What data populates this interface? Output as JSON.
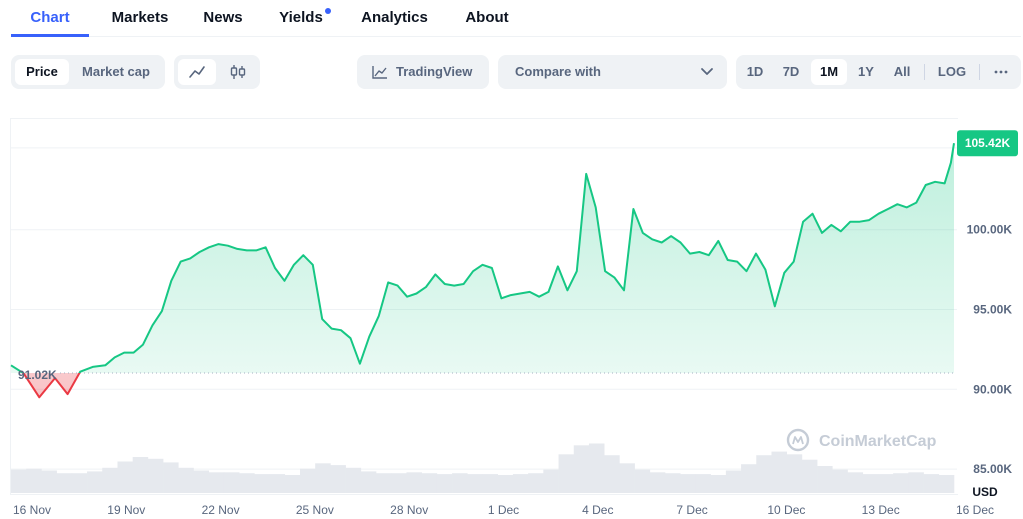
{
  "tabs": [
    {
      "label": "Chart",
      "active": true
    },
    {
      "label": "Markets",
      "active": false
    },
    {
      "label": "News",
      "active": false
    },
    {
      "label": "Yields",
      "active": false,
      "dot": true
    },
    {
      "label": "Analytics",
      "active": false
    },
    {
      "label": "About",
      "active": false
    }
  ],
  "toolbar": {
    "metric": {
      "price": "Price",
      "market_cap": "Market cap",
      "selected": "Price"
    },
    "chart_type": {
      "line_icon": "line-chart-icon",
      "candle_icon": "candlestick-icon",
      "selected": "line"
    },
    "tradingview_label": "TradingView",
    "compare_label": "Compare with",
    "ranges": [
      "1D",
      "7D",
      "1M",
      "1Y",
      "All"
    ],
    "selected_range": "1M",
    "log_label": "LOG",
    "more_icon": "more-horizontal-icon"
  },
  "colors": {
    "up": "#16c784",
    "down": "#ea3943",
    "accent": "#3861fb",
    "grid": "#eff2f5",
    "axis_text": "#58667e"
  },
  "chart_data": {
    "type": "area",
    "currency_label": "USD",
    "watermark": "CoinMarketCap",
    "ylim": [
      83500,
      107000
    ],
    "y_ticks": [
      85000,
      90000,
      95000,
      100000
    ],
    "y_tick_labels": [
      "85.00K",
      "90.00K",
      "95.00K",
      "100.00K"
    ],
    "reference_value": 91020,
    "reference_label": "91.02K",
    "last_value": 105420,
    "last_label": "105.42K",
    "x_tick_labels": [
      "16 Nov",
      "19 Nov",
      "22 Nov",
      "25 Nov",
      "28 Nov",
      "1 Dec",
      "4 Dec",
      "7 Dec",
      "10 Dec",
      "13 Dec",
      "16 Dec"
    ],
    "x_tick_days": [
      0,
      3,
      6,
      9,
      12,
      15,
      18,
      21,
      24,
      27,
      30
    ],
    "series": [
      {
        "values_x_days": [
          0,
          0.4,
          0.9,
          1.4,
          1.8,
          2.2,
          2.6,
          3.0,
          3.3,
          3.6,
          3.9,
          4.2,
          4.5,
          4.8,
          5.1,
          5.4,
          5.7,
          6.0,
          6.3,
          6.6,
          6.9,
          7.2,
          7.5,
          7.8,
          8.1,
          8.4,
          8.7,
          9.0,
          9.3,
          9.6,
          9.9,
          10.2,
          10.5,
          10.8,
          11.1,
          11.4,
          11.7,
          12.0,
          12.3,
          12.6,
          12.9,
          13.2,
          13.5,
          13.8,
          14.1,
          14.4,
          14.7,
          15.0,
          15.3,
          15.6,
          15.9,
          16.2,
          16.5,
          16.8,
          17.1,
          17.4,
          17.7,
          18.0,
          18.3,
          18.6,
          18.9,
          19.2,
          19.5,
          19.8,
          20.1,
          20.4,
          20.7,
          21.0,
          21.3,
          21.6,
          21.9,
          22.2,
          22.5,
          22.8,
          23.1,
          23.4,
          23.7,
          24.0,
          24.3,
          24.6,
          24.9,
          25.2,
          25.5,
          25.8,
          26.1,
          26.4,
          26.7,
          27.0,
          27.3,
          27.6,
          27.9,
          28.2,
          28.5,
          28.8,
          29.1,
          29.4,
          29.7,
          29.9,
          30.0
        ],
        "values_y": [
          91500,
          91000,
          89500,
          90700,
          89700,
          91100,
          91400,
          91500,
          92000,
          92300,
          92300,
          92800,
          94000,
          94900,
          96800,
          98000,
          98200,
          98600,
          98900,
          99100,
          99000,
          98800,
          98700,
          98700,
          98900,
          97600,
          96800,
          97800,
          98400,
          97800,
          94400,
          93800,
          93700,
          93200,
          91600,
          93300,
          94600,
          96700,
          96500,
          95800,
          96000,
          96400,
          97200,
          96600,
          96500,
          96600,
          97400,
          97800,
          97600,
          95700,
          95900,
          96000,
          96100,
          95800,
          96100,
          97700,
          96200,
          97400,
          103500,
          101400,
          97400,
          97000,
          96200,
          101300,
          99800,
          99400,
          99200,
          99600,
          99200,
          98500,
          98600,
          98400,
          99300,
          98100,
          98000,
          97400,
          98500,
          97500,
          95200,
          97300,
          98000,
          100500,
          101000,
          99800,
          100300,
          99900,
          100500,
          100500,
          100600,
          101000,
          101300,
          101600,
          101400,
          101700,
          102800,
          103000,
          102900,
          104200,
          105420
        ]
      }
    ],
    "volume_shape": [
      0.26,
      0.27,
      0.25,
      0.22,
      0.22,
      0.24,
      0.28,
      0.35,
      0.4,
      0.38,
      0.34,
      0.28,
      0.25,
      0.23,
      0.23,
      0.22,
      0.21,
      0.21,
      0.2,
      0.27,
      0.33,
      0.31,
      0.28,
      0.24,
      0.22,
      0.22,
      0.23,
      0.22,
      0.21,
      0.22,
      0.21,
      0.21,
      0.2,
      0.21,
      0.22,
      0.26,
      0.43,
      0.53,
      0.55,
      0.42,
      0.33,
      0.26,
      0.23,
      0.22,
      0.21,
      0.21,
      0.2,
      0.25,
      0.32,
      0.42,
      0.46,
      0.43,
      0.37,
      0.3,
      0.26,
      0.23,
      0.21,
      0.21,
      0.22,
      0.23,
      0.21,
      0.2
    ]
  }
}
